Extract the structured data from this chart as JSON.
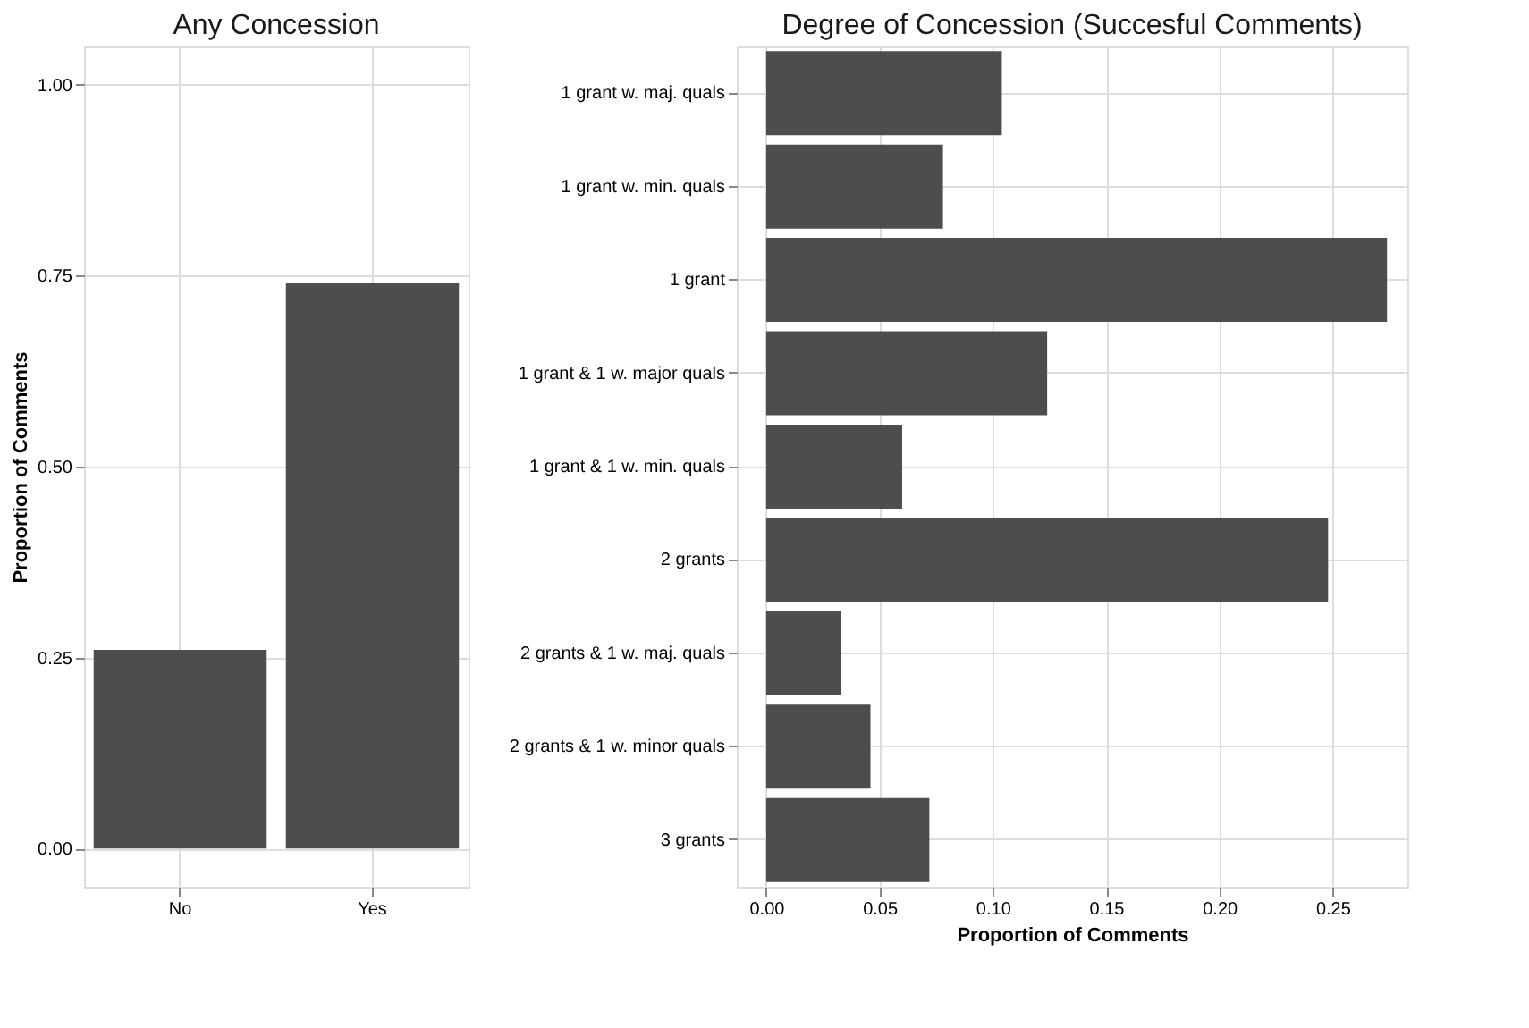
{
  "chart_data": [
    {
      "type": "bar",
      "title": "Any Concession",
      "ylabel": "Proportion of Comments",
      "categories": [
        "No",
        "Yes"
      ],
      "values": [
        0.26,
        0.74
      ],
      "color": "#4d4d4d",
      "ylim": [
        -0.05,
        1.05
      ],
      "yticks": [
        {
          "value": 0,
          "label": "0.00"
        },
        {
          "value": 0.25,
          "label": "0.25"
        },
        {
          "value": 0.5,
          "label": "0.50"
        },
        {
          "value": 0.75,
          "label": "0.75"
        },
        {
          "value": 1,
          "label": "1.00"
        }
      ],
      "grid": true
    },
    {
      "type": "bar",
      "orientation": "horizontal",
      "title": "Degree of Concession (Succesful Comments)",
      "xlabel": "Proportion of Comments",
      "categories": [
        "1 grant w. maj. quals",
        "1 grant w. min. quals",
        "1 grant",
        "1 grant & 1 w. major quals",
        "1 grant & 1 w. min. quals",
        "2 grants",
        "2 grants & 1 w. maj. quals",
        "2 grants & 1 w. minor quals",
        "3 grants"
      ],
      "values": [
        0.104,
        0.078,
        0.274,
        0.124,
        0.06,
        0.248,
        0.033,
        0.046,
        0.072
      ],
      "color": "#4d4d4d",
      "xlim": [
        -0.013,
        0.283
      ],
      "xticks": [
        {
          "value": 0,
          "label": "0.00"
        },
        {
          "value": 0.05,
          "label": "0.05"
        },
        {
          "value": 0.1,
          "label": "0.10"
        },
        {
          "value": 0.15,
          "label": "0.15"
        },
        {
          "value": 0.2,
          "label": "0.20"
        },
        {
          "value": 0.25,
          "label": "0.25"
        }
      ],
      "grid": true
    }
  ]
}
